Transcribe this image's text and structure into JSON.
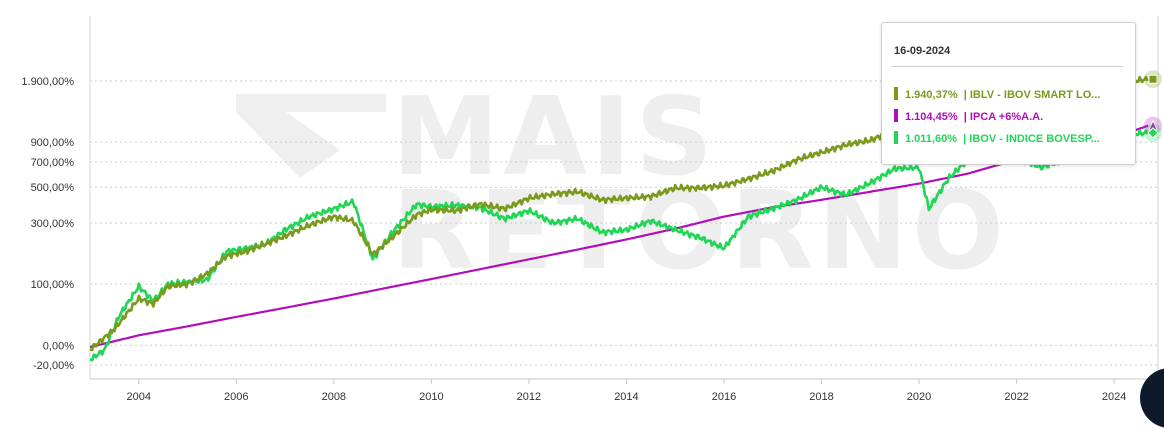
{
  "chart_data": {
    "type": "line",
    "y_scale": "log (value + 100)",
    "x_ticks": [
      "2004",
      "2006",
      "2008",
      "2010",
      "2012",
      "2014",
      "2016",
      "2018",
      "2020",
      "2022",
      "2024"
    ],
    "y_ticks": [
      {
        "label": "1.900,00%",
        "value": 1900
      },
      {
        "label": "900,00%",
        "value": 900
      },
      {
        "label": "700,00%",
        "value": 700
      },
      {
        "label": "500,00%",
        "value": 500
      },
      {
        "label": "300,00%",
        "value": 300
      },
      {
        "label": "100,00%",
        "value": 100
      },
      {
        "label": "0,00%",
        "value": 0
      },
      {
        "label": "-20,00%",
        "value": -20
      }
    ],
    "xlim": [
      2003.0,
      2024.9
    ],
    "grid": true,
    "watermark": [
      "MAIS",
      "RETORNO"
    ],
    "series": [
      {
        "name": "IBLV - IBOV SMART LO...",
        "color": "#7a9a1d",
        "points": [
          [
            2003.0,
            -5
          ],
          [
            2003.5,
            20
          ],
          [
            2004.0,
            70
          ],
          [
            2004.3,
            60
          ],
          [
            2004.6,
            95
          ],
          [
            2005.0,
            100
          ],
          [
            2005.4,
            125
          ],
          [
            2005.8,
            175
          ],
          [
            2006.2,
            190
          ],
          [
            2006.6,
            215
          ],
          [
            2007.0,
            245
          ],
          [
            2007.5,
            290
          ],
          [
            2008.0,
            330
          ],
          [
            2008.4,
            310
          ],
          [
            2008.8,
            180
          ],
          [
            2009.2,
            240
          ],
          [
            2009.7,
            340
          ],
          [
            2010.0,
            365
          ],
          [
            2010.5,
            360
          ],
          [
            2011.0,
            395
          ],
          [
            2011.5,
            370
          ],
          [
            2012.0,
            430
          ],
          [
            2012.5,
            455
          ],
          [
            2013.0,
            470
          ],
          [
            2013.5,
            420
          ],
          [
            2014.0,
            430
          ],
          [
            2014.5,
            440
          ],
          [
            2015.0,
            495
          ],
          [
            2015.5,
            495
          ],
          [
            2016.0,
            510
          ],
          [
            2016.5,
            560
          ],
          [
            2017.0,
            620
          ],
          [
            2017.5,
            720
          ],
          [
            2018.0,
            790
          ],
          [
            2018.5,
            870
          ],
          [
            2019.0,
            920
          ],
          [
            2019.5,
            1050
          ],
          [
            2020.0,
            1180
          ],
          [
            2020.2,
            700
          ],
          [
            2020.6,
            1000
          ],
          [
            2021.0,
            1200
          ],
          [
            2021.5,
            1300
          ],
          [
            2022.0,
            1380
          ],
          [
            2022.5,
            1500
          ],
          [
            2023.0,
            1600
          ],
          [
            2023.5,
            1750
          ],
          [
            2024.0,
            1850
          ],
          [
            2024.7,
            1940.37
          ]
        ]
      },
      {
        "name": "IPCA +6%A.A.",
        "color": "#b00fb8",
        "points": [
          [
            2003.0,
            -2
          ],
          [
            2004.0,
            12
          ],
          [
            2005.0,
            24
          ],
          [
            2006.0,
            38
          ],
          [
            2007.0,
            53
          ],
          [
            2008.0,
            70
          ],
          [
            2009.0,
            90
          ],
          [
            2010.0,
            112
          ],
          [
            2011.0,
            137
          ],
          [
            2012.0,
            165
          ],
          [
            2013.0,
            196
          ],
          [
            2014.0,
            232
          ],
          [
            2015.0,
            275
          ],
          [
            2016.0,
            330
          ],
          [
            2017.0,
            378
          ],
          [
            2018.0,
            420
          ],
          [
            2019.0,
            470
          ],
          [
            2020.0,
            525
          ],
          [
            2021.0,
            600
          ],
          [
            2022.0,
            720
          ],
          [
            2023.0,
            840
          ],
          [
            2024.0,
            960
          ],
          [
            2024.7,
            1104.45
          ]
        ]
      },
      {
        "name": "IBOV - INDICE BOVESP...",
        "color": "#1fd655",
        "points": [
          [
            2003.0,
            -15
          ],
          [
            2003.3,
            -5
          ],
          [
            2003.6,
            40
          ],
          [
            2004.0,
            95
          ],
          [
            2004.3,
            65
          ],
          [
            2004.6,
            100
          ],
          [
            2005.0,
            105
          ],
          [
            2005.4,
            110
          ],
          [
            2005.8,
            190
          ],
          [
            2006.2,
            200
          ],
          [
            2006.6,
            215
          ],
          [
            2007.0,
            270
          ],
          [
            2007.5,
            330
          ],
          [
            2008.0,
            370
          ],
          [
            2008.4,
            410
          ],
          [
            2008.8,
            165
          ],
          [
            2009.2,
            260
          ],
          [
            2009.7,
            395
          ],
          [
            2010.0,
            380
          ],
          [
            2010.5,
            390
          ],
          [
            2011.0,
            375
          ],
          [
            2011.5,
            320
          ],
          [
            2012.0,
            360
          ],
          [
            2012.5,
            300
          ],
          [
            2013.0,
            320
          ],
          [
            2013.5,
            260
          ],
          [
            2014.0,
            270
          ],
          [
            2014.5,
            310
          ],
          [
            2015.0,
            270
          ],
          [
            2015.5,
            240
          ],
          [
            2016.0,
            200
          ],
          [
            2016.5,
            330
          ],
          [
            2017.0,
            370
          ],
          [
            2017.5,
            420
          ],
          [
            2018.0,
            500
          ],
          [
            2018.5,
            450
          ],
          [
            2019.0,
            530
          ],
          [
            2019.5,
            640
          ],
          [
            2020.0,
            650
          ],
          [
            2020.2,
            370
          ],
          [
            2020.6,
            560
          ],
          [
            2021.0,
            720
          ],
          [
            2021.5,
            760
          ],
          [
            2022.0,
            740
          ],
          [
            2022.5,
            650
          ],
          [
            2023.0,
            720
          ],
          [
            2023.5,
            860
          ],
          [
            2024.0,
            980
          ],
          [
            2024.7,
            1011.6
          ]
        ]
      }
    ]
  },
  "tooltip": {
    "date": "16-09-2024",
    "rows": [
      {
        "value": "1.940,37%",
        "name": "| IBLV - IBOV SMART LO...",
        "color": "#7a9a1d"
      },
      {
        "value": "1.104,45%",
        "name": "| IPCA +6%A.A.",
        "color": "#b00fb8"
      },
      {
        "value": "1.011,60%",
        "name": "| IBOV - INDICE BOVESP...",
        "color": "#1fd655"
      }
    ]
  }
}
